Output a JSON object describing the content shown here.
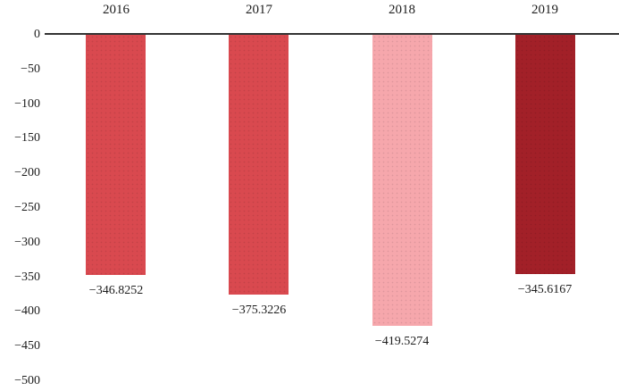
{
  "chart_data": {
    "type": "bar",
    "title": "",
    "xlabel": "",
    "ylabel": "",
    "categories": [
      "2016",
      "2017",
      "2018",
      "2019"
    ],
    "values": [
      -346.8252,
      -375.3226,
      -419.5274,
      -345.6167
    ],
    "value_labels": [
      "−346.8252",
      "−375.3226",
      "−419.5274",
      "−345.6167"
    ],
    "bar_colors": [
      "#d9494f",
      "#d9494f",
      "#f6a7ac",
      "#a22028"
    ],
    "yticks": [
      0,
      -50,
      -100,
      -150,
      -200,
      -250,
      -300,
      -350,
      -400,
      -450,
      -500
    ],
    "ytick_labels": [
      "0",
      "−50",
      "−100",
      "−150",
      "−200",
      "−250",
      "−300",
      "−350",
      "−400",
      "−450",
      "−500"
    ],
    "ylim": [
      -500,
      0
    ],
    "grid": false,
    "legend": false,
    "category_label_position": "top",
    "baseline_axis": "zero-line-at-top"
  },
  "colors": {
    "background": "#ffffff",
    "axis_line": "#333333",
    "text": "#1c1c1c"
  }
}
